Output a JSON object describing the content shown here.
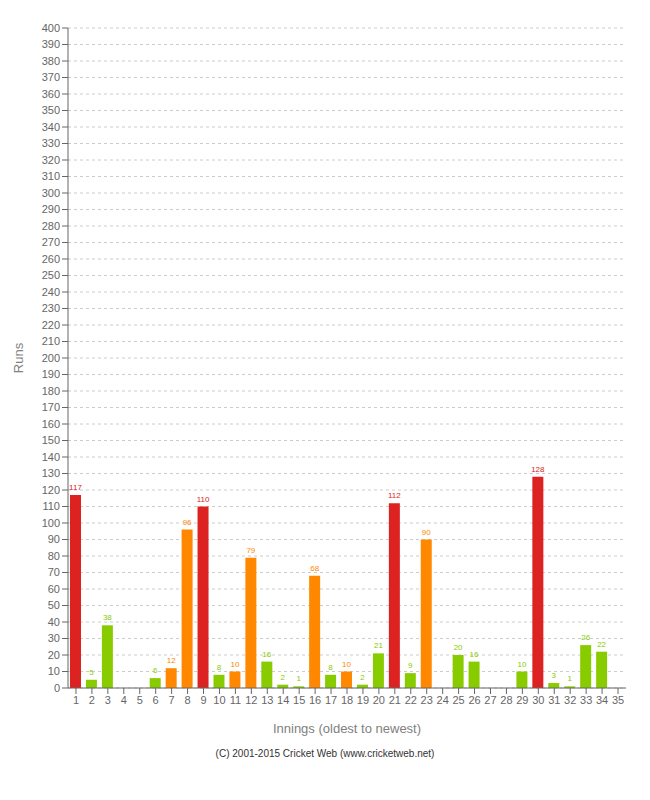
{
  "chart_data": {
    "type": "bar",
    "categories": [
      "1",
      "2",
      "3",
      "4",
      "5",
      "6",
      "7",
      "8",
      "9",
      "10",
      "11",
      "12",
      "13",
      "14",
      "15",
      "16",
      "17",
      "18",
      "19",
      "20",
      "21",
      "22",
      "23",
      "24",
      "25",
      "26",
      "27",
      "28",
      "29",
      "30",
      "31",
      "32",
      "33",
      "34",
      "35"
    ],
    "values": [
      117,
      5,
      38,
      0,
      0,
      6,
      12,
      96,
      110,
      8,
      10,
      79,
      16,
      2,
      1,
      68,
      8,
      10,
      2,
      21,
      112,
      9,
      90,
      0,
      20,
      16,
      0,
      0,
      10,
      128,
      3,
      1,
      26,
      22,
      0
    ],
    "colors": [
      "#dd2222",
      "#88cc00",
      "#88cc00",
      "#dd2222",
      "#88cc00",
      "#88cc00",
      "#ff8800",
      "#ff8800",
      "#dd2222",
      "#88cc00",
      "#ff8800",
      "#ff8800",
      "#88cc00",
      "#88cc00",
      "#88cc00",
      "#ff8800",
      "#88cc00",
      "#ff8800",
      "#88cc00",
      "#88cc00",
      "#dd2222",
      "#88cc00",
      "#ff8800",
      "#88cc00",
      "#88cc00",
      "#88cc00",
      "#88cc00",
      "#88cc00",
      "#88cc00",
      "#dd2222",
      "#88cc00",
      "#88cc00",
      "#88cc00",
      "#88cc00",
      "#88cc00"
    ],
    "xlabel": "Innings (oldest to newest)",
    "ylabel": "Runs",
    "ylim": [
      0,
      400
    ],
    "yticks": [
      0,
      10,
      20,
      30,
      40,
      50,
      60,
      70,
      80,
      90,
      100,
      110,
      120,
      130,
      140,
      150,
      160,
      170,
      180,
      190,
      200,
      210,
      220,
      230,
      240,
      250,
      260,
      270,
      280,
      290,
      300,
      310,
      320,
      330,
      340,
      350,
      360,
      370,
      380,
      390,
      400
    ],
    "grid": true,
    "data_labels": true,
    "annotations": [
      "(C) 2001-2015 Cricket Web (www.cricketweb.net)"
    ]
  }
}
